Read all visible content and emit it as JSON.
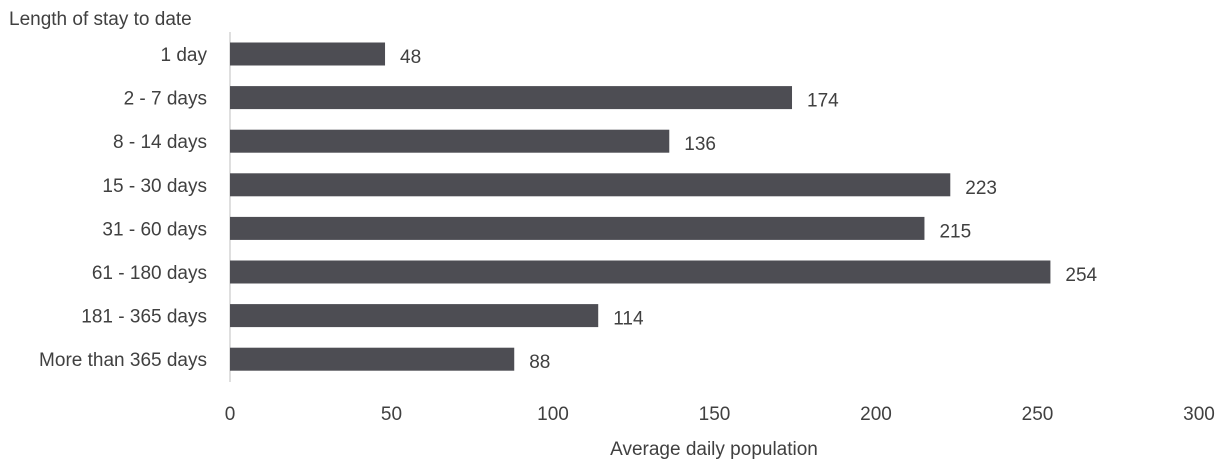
{
  "chart_data": {
    "type": "bar",
    "orientation": "horizontal",
    "ylabel": "Length of stay to date",
    "xlabel": "Average daily population",
    "categories": [
      "1 day",
      "2 - 7 days",
      "8 - 14 days",
      "15 - 30 days",
      "31 - 60 days",
      "61 - 180 days",
      "181 - 365 days",
      "More than 365 days"
    ],
    "values": [
      48,
      174,
      136,
      223,
      215,
      254,
      114,
      88
    ],
    "xlim": [
      0,
      300
    ],
    "xticks": [
      0,
      50,
      100,
      150,
      200,
      250,
      300
    ],
    "grid": false,
    "legend": "none",
    "bar_color": "#4d4d53",
    "axis_color": "#bfbfbf",
    "text_color": "#404040"
  }
}
